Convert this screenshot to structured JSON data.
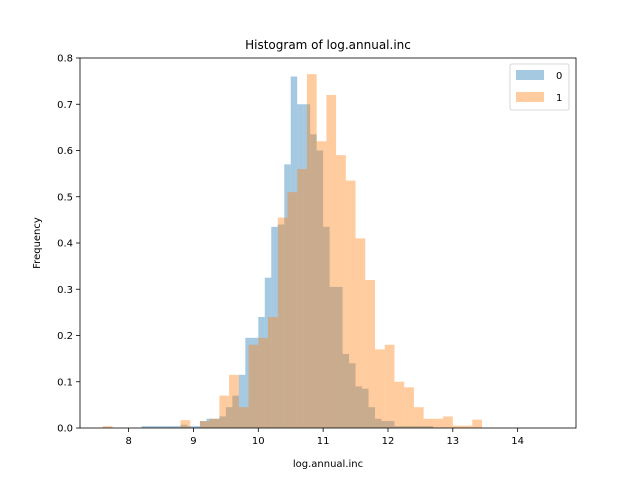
{
  "chart_data": {
    "type": "histogram",
    "title": "Histogram of log.annual.inc",
    "xlabel": "log.annual.inc",
    "ylabel": "Frequency",
    "xlim": [
      7.25,
      14.9
    ],
    "ylim": [
      0,
      0.8
    ],
    "xticks": [
      8,
      9,
      10,
      11,
      12,
      13,
      14
    ],
    "yticks": [
      0.0,
      0.1,
      0.2,
      0.3,
      0.4,
      0.5,
      0.6,
      0.7,
      0.8
    ],
    "grid": false,
    "legend_position": "top-right",
    "series": [
      {
        "name": "0",
        "color": "#1f77b4",
        "opacity": 0.4,
        "bins": [
          [
            8.2,
            8.3,
            0.004
          ],
          [
            8.3,
            8.4,
            0.004
          ],
          [
            8.4,
            8.5,
            0.004
          ],
          [
            8.5,
            8.6,
            0.004
          ],
          [
            8.6,
            8.7,
            0.004
          ],
          [
            8.7,
            8.8,
            0.004
          ],
          [
            8.8,
            8.9,
            0.007
          ],
          [
            8.9,
            9.0,
            0.004
          ],
          [
            9.0,
            9.1,
            0.004
          ],
          [
            9.1,
            9.2,
            0.015
          ],
          [
            9.2,
            9.3,
            0.02
          ],
          [
            9.3,
            9.4,
            0.02
          ],
          [
            9.4,
            9.5,
            0.025
          ],
          [
            9.5,
            9.6,
            0.045
          ],
          [
            9.6,
            9.7,
            0.07
          ],
          [
            9.7,
            9.8,
            0.115
          ],
          [
            9.8,
            9.9,
            0.195
          ],
          [
            9.9,
            10.0,
            0.195
          ],
          [
            10.0,
            10.1,
            0.24
          ],
          [
            10.1,
            10.2,
            0.325
          ],
          [
            10.2,
            10.3,
            0.435
          ],
          [
            10.3,
            10.4,
            0.44
          ],
          [
            10.4,
            10.5,
            0.57
          ],
          [
            10.5,
            10.6,
            0.76
          ],
          [
            10.6,
            10.7,
            0.7
          ],
          [
            10.7,
            10.8,
            0.7
          ],
          [
            10.8,
            10.9,
            0.635
          ],
          [
            10.9,
            11.0,
            0.6
          ],
          [
            11.0,
            11.1,
            0.435
          ],
          [
            11.1,
            11.2,
            0.305
          ],
          [
            11.2,
            11.3,
            0.305
          ],
          [
            11.3,
            11.4,
            0.16
          ],
          [
            11.4,
            11.5,
            0.14
          ],
          [
            11.5,
            11.6,
            0.09
          ],
          [
            11.6,
            11.7,
            0.085
          ],
          [
            11.7,
            11.8,
            0.045
          ],
          [
            11.8,
            11.9,
            0.02
          ],
          [
            11.9,
            12.0,
            0.015
          ],
          [
            12.0,
            12.1,
            0.015
          ],
          [
            12.1,
            12.2,
            0.004
          ],
          [
            12.2,
            12.3,
            0.004
          ],
          [
            12.3,
            12.4,
            0.004
          ],
          [
            12.4,
            12.5,
            0.004
          ],
          [
            12.5,
            12.6,
            0.004
          ],
          [
            12.6,
            12.7,
            0.004
          ]
        ]
      },
      {
        "name": "1",
        "color": "#ff7f0e",
        "opacity": 0.4,
        "bins": [
          [
            7.6,
            7.75,
            0.004
          ],
          [
            8.8,
            8.95,
            0.017
          ],
          [
            9.1,
            9.25,
            0.015
          ],
          [
            9.25,
            9.4,
            0.02
          ],
          [
            9.4,
            9.55,
            0.07
          ],
          [
            9.55,
            9.7,
            0.115
          ],
          [
            9.7,
            9.85,
            0.045
          ],
          [
            9.85,
            10.0,
            0.18
          ],
          [
            10.0,
            10.15,
            0.195
          ],
          [
            10.15,
            10.3,
            0.24
          ],
          [
            10.3,
            10.45,
            0.455
          ],
          [
            10.45,
            10.6,
            0.51
          ],
          [
            10.6,
            10.75,
            0.56
          ],
          [
            10.75,
            10.9,
            0.765
          ],
          [
            10.9,
            11.05,
            0.62
          ],
          [
            11.05,
            11.2,
            0.72
          ],
          [
            11.2,
            11.35,
            0.59
          ],
          [
            11.35,
            11.5,
            0.535
          ],
          [
            11.5,
            11.65,
            0.41
          ],
          [
            11.65,
            11.8,
            0.32
          ],
          [
            11.8,
            11.95,
            0.17
          ],
          [
            11.95,
            12.1,
            0.18
          ],
          [
            12.1,
            12.25,
            0.1
          ],
          [
            12.25,
            12.4,
            0.088
          ],
          [
            12.4,
            12.55,
            0.045
          ],
          [
            12.55,
            12.7,
            0.02
          ],
          [
            12.7,
            12.85,
            0.02
          ],
          [
            12.85,
            13.0,
            0.025
          ],
          [
            13.0,
            13.15,
            0.005
          ],
          [
            13.15,
            13.3,
            0.005
          ],
          [
            13.3,
            13.45,
            0.018
          ]
        ]
      }
    ]
  }
}
